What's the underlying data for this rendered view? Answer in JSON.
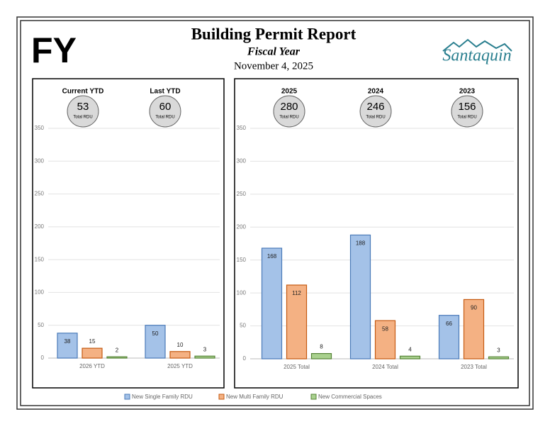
{
  "header": {
    "badge": "FY",
    "title": "Building Permit Report",
    "subtitle": "Fiscal Year",
    "date": "November 4, 2025",
    "logo": "Santaquin"
  },
  "chart_data": [
    {
      "type": "bar",
      "summaries": [
        {
          "label": "Current YTD",
          "value": 53,
          "unit": "Total RDU"
        },
        {
          "label": "Last YTD",
          "value": 60,
          "unit": "Total RDU"
        }
      ],
      "categories": [
        "2026 YTD",
        "2025 YTD"
      ],
      "series": [
        {
          "name": "New Single Family RDU",
          "color": "#a4c2e8",
          "values": [
            38,
            50
          ]
        },
        {
          "name": "New Multi Family RDU",
          "color": "#f4b183",
          "values": [
            15,
            10
          ]
        },
        {
          "name": "New Commercial Spaces",
          "color": "#a9d18e",
          "values": [
            2,
            3
          ]
        }
      ],
      "ylim": [
        0,
        350
      ],
      "yticks": [
        0,
        50,
        100,
        150,
        200,
        250,
        300,
        350
      ],
      "grid": true
    },
    {
      "type": "bar",
      "summaries": [
        {
          "label": "2025",
          "value": 280,
          "unit": "Total RDU"
        },
        {
          "label": "2024",
          "value": 246,
          "unit": "Total RDU"
        },
        {
          "label": "2023",
          "value": 156,
          "unit": "Total RDU"
        }
      ],
      "categories": [
        "2025 Total",
        "2024 Total",
        "2023 Total"
      ],
      "series": [
        {
          "name": "New Single Family RDU",
          "color": "#a4c2e8",
          "values": [
            168,
            188,
            66
          ]
        },
        {
          "name": "New Multi Family RDU",
          "color": "#f4b183",
          "values": [
            112,
            58,
            90
          ]
        },
        {
          "name": "New Commercial Spaces",
          "color": "#a9d18e",
          "values": [
            8,
            4,
            3
          ]
        }
      ],
      "ylim": [
        0,
        350
      ],
      "yticks": [
        0,
        50,
        100,
        150,
        200,
        250,
        300,
        350
      ],
      "grid": true
    }
  ]
}
